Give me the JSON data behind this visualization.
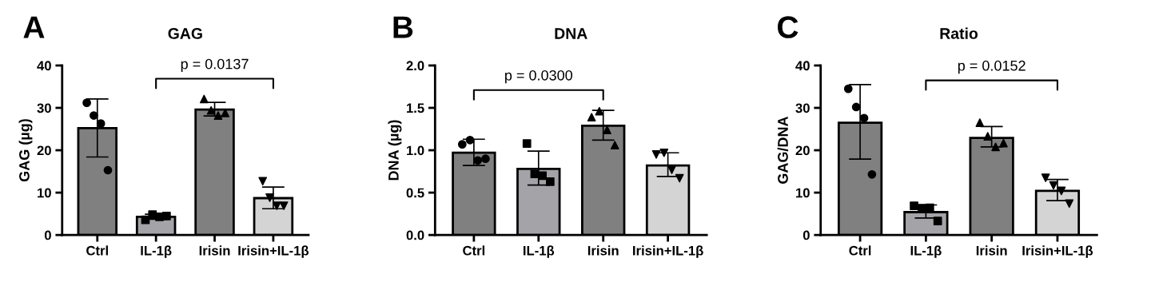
{
  "chart_data": [
    {
      "type": "bar",
      "title": "GAG",
      "ylabel": "GAG (µg)",
      "categories": [
        "Ctrl",
        "IL-1β",
        "Irisin",
        "Irisin+IL-1β"
      ],
      "ylim": [
        0,
        40
      ],
      "yticks": [
        0,
        10,
        20,
        30,
        40
      ],
      "grid": false,
      "legend": false,
      "annotations": [
        "A",
        "p = 0.0137"
      ],
      "series": [
        {
          "values": [
            25.2,
            4.3,
            29.6,
            8.7
          ],
          "colors": [
            "#808080",
            "#a3a3a8",
            "#808080",
            "#d4d4d4"
          ],
          "errors": [
            [
              18.4,
              32.1
            ],
            [
              3.7,
              4.9
            ],
            [
              28.1,
              31.3
            ],
            [
              6.2,
              11.3
            ]
          ]
        },
        {
          "type": "scatter",
          "color": "#000000",
          "marker": "circle",
          "x": [
            "Ctrl",
            "Ctrl",
            "Ctrl",
            "Ctrl"
          ],
          "values": [
            31.2,
            28.2,
            26.3,
            15.3
          ]
        },
        {
          "type": "scatter",
          "color": "#000000",
          "marker": "square",
          "x": [
            "IL-1β",
            "IL-1β",
            "IL-1β",
            "IL-1β"
          ],
          "values": [
            3.6,
            4.8,
            4.3,
            4.5
          ]
        },
        {
          "type": "scatter",
          "color": "#000000",
          "marker": "triangle",
          "x": [
            "Irisin",
            "Irisin",
            "Irisin",
            "Irisin"
          ],
          "values": [
            32.1,
            29.4,
            28.2,
            28.8
          ]
        },
        {
          "type": "scatter",
          "color": "#000000",
          "marker": "triangle_down",
          "x": [
            "Irisin+IL-1β",
            "Irisin+IL-1β",
            "Irisin+IL-1β",
            "Irisin+IL-1β"
          ],
          "values": [
            12.7,
            8.8,
            6.9,
            6.9
          ]
        }
      ]
    },
    {
      "type": "bar",
      "title": "DNA",
      "ylabel": "DNA (µg)",
      "categories": [
        "Ctrl",
        "IL-1β",
        "Irisin",
        "Irisin+IL-1β"
      ],
      "ylim": [
        0,
        2.0
      ],
      "yticks": [
        {
          "value": 0,
          "label": "0.0"
        },
        0.5,
        {
          "value": 1,
          "label": "1.0"
        },
        1.5,
        {
          "value": 2,
          "label": "2.0"
        }
      ],
      "grid": false,
      "legend": false,
      "annotations": [
        "B",
        "p = 0.0300"
      ],
      "series": [
        {
          "values": [
            0.97,
            0.78,
            1.29,
            0.82
          ],
          "colors": [
            "#808080",
            "#a3a3a8",
            "#808080",
            "#d4d4d4"
          ],
          "errors": [
            [
              0.82,
              1.13
            ],
            [
              0.59,
              0.99
            ],
            [
              1.12,
              1.47
            ],
            [
              0.69,
              0.97
            ]
          ]
        },
        {
          "type": "scatter",
          "color": "#000000",
          "marker": "circle",
          "x": [
            "Ctrl",
            "Ctrl",
            "Ctrl",
            "Ctrl"
          ],
          "values": [
            1.07,
            1.12,
            0.88,
            0.9
          ]
        },
        {
          "type": "scatter",
          "color": "#000000",
          "marker": "square",
          "x": [
            "IL-1β",
            "IL-1β",
            "IL-1β",
            "IL-1β"
          ],
          "values": [
            1.08,
            0.72,
            0.7,
            0.63
          ]
        },
        {
          "type": "scatter",
          "color": "#000000",
          "marker": "triangle",
          "x": [
            "Irisin",
            "Irisin",
            "Irisin",
            "Irisin"
          ],
          "values": [
            1.39,
            1.46,
            1.24,
            1.06
          ]
        },
        {
          "type": "scatter",
          "color": "#000000",
          "marker": "triangle_down",
          "x": [
            "Irisin+IL-1β",
            "Irisin+IL-1β",
            "Irisin+IL-1β",
            "Irisin+IL-1β"
          ],
          "values": [
            0.95,
            0.97,
            0.77,
            0.67
          ]
        }
      ]
    },
    {
      "type": "bar",
      "title": "Ratio",
      "ylabel": "GAG/DNA",
      "categories": [
        "Ctrl",
        "IL-1β",
        "Irisin",
        "Irisin+IL-1β"
      ],
      "ylim": [
        0,
        40
      ],
      "yticks": [
        0,
        10,
        20,
        30,
        40
      ],
      "grid": false,
      "legend": false,
      "annotations": [
        "C",
        "p = 0.0152"
      ],
      "series": [
        {
          "values": [
            26.5,
            5.4,
            22.9,
            10.4
          ],
          "colors": [
            "#808080",
            "#a3a3a8",
            "#808080",
            "#d4d4d4"
          ],
          "errors": [
            [
              17.9,
              35.5
            ],
            [
              4.0,
              7.1
            ],
            [
              20.8,
              25.6
            ],
            [
              8.1,
              13.1
            ]
          ]
        },
        {
          "type": "scatter",
          "color": "#000000",
          "marker": "circle",
          "x": [
            "Ctrl",
            "Ctrl",
            "Ctrl",
            "Ctrl"
          ],
          "values": [
            34.5,
            30.2,
            27.6,
            14.3
          ]
        },
        {
          "type": "scatter",
          "color": "#000000",
          "marker": "square",
          "x": [
            "IL-1β",
            "IL-1β",
            "IL-1β",
            "IL-1β"
          ],
          "values": [
            6.9,
            6.3,
            6.4,
            3.3
          ]
        },
        {
          "type": "scatter",
          "color": "#000000",
          "marker": "triangle",
          "x": [
            "Irisin",
            "Irisin",
            "Irisin",
            "Irisin"
          ],
          "values": [
            26.5,
            23.3,
            20.8,
            21.7
          ]
        },
        {
          "type": "scatter",
          "color": "#000000",
          "marker": "triangle_down",
          "x": [
            "Irisin+IL-1β",
            "Irisin+IL-1β",
            "Irisin+IL-1β",
            "Irisin+IL-1β"
          ],
          "values": [
            13.5,
            11.7,
            10.4,
            7.4
          ]
        }
      ]
    }
  ]
}
